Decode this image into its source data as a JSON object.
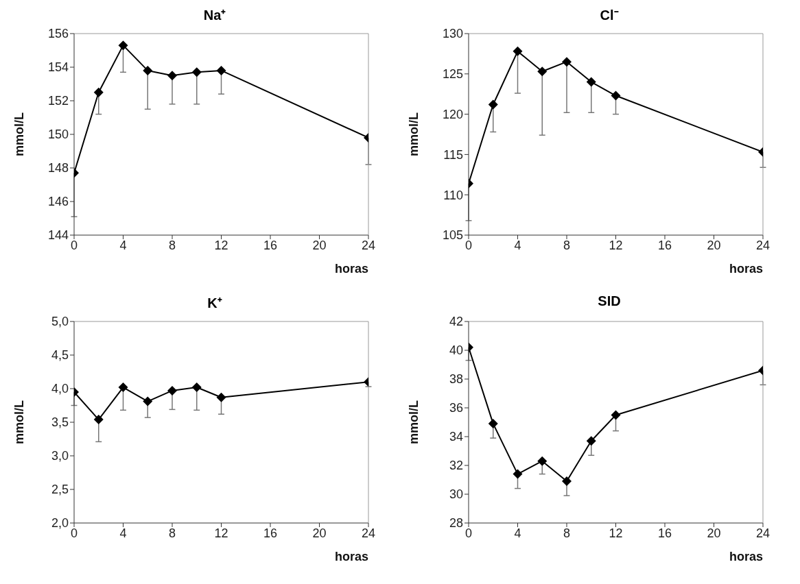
{
  "chart_data": [
    {
      "type": "line",
      "title": "Na⁺",
      "xlabel": "horas",
      "ylabel": "mmol/L",
      "x": [
        0,
        2,
        4,
        6,
        8,
        10,
        12,
        24
      ],
      "xlim": [
        0,
        24
      ],
      "xticks": [
        0,
        4,
        8,
        12,
        16,
        20,
        24
      ],
      "ylim": [
        144,
        156
      ],
      "yticks": [
        144,
        146,
        148,
        150,
        152,
        154,
        156
      ],
      "grid": false,
      "legend": false,
      "marker": "diamond",
      "line_style": "solid",
      "series": [
        {
          "color": "#000000",
          "values": [
            147.7,
            152.5,
            155.3,
            153.8,
            153.5,
            153.7,
            153.8,
            149.8
          ],
          "errors": [
            [
              145.1,
              147.7
            ],
            [
              151.2,
              152.5
            ],
            [
              153.7,
              155.3
            ],
            [
              151.5,
              153.8
            ],
            [
              151.8,
              153.5
            ],
            [
              151.8,
              153.7
            ],
            [
              152.4,
              153.8
            ],
            [
              148.2,
              149.8
            ]
          ]
        }
      ]
    },
    {
      "type": "line",
      "title": "Cl⁻",
      "xlabel": "horas",
      "ylabel": "mmol/L",
      "x": [
        0,
        2,
        4,
        6,
        8,
        10,
        12,
        24
      ],
      "xlim": [
        0,
        24
      ],
      "xticks": [
        0,
        4,
        8,
        12,
        16,
        20,
        24
      ],
      "ylim": [
        105,
        130
      ],
      "yticks": [
        105,
        110,
        115,
        120,
        125,
        130
      ],
      "grid": false,
      "legend": false,
      "marker": "diamond",
      "line_style": "solid",
      "series": [
        {
          "color": "#000000",
          "values": [
            111.4,
            121.2,
            127.8,
            125.3,
            126.5,
            124.0,
            122.3,
            115.3
          ],
          "errors": [
            [
              106.8,
              111.4
            ],
            [
              117.8,
              121.2
            ],
            [
              122.6,
              127.8
            ],
            [
              117.4,
              125.3
            ],
            [
              120.2,
              126.5
            ],
            [
              120.2,
              124.0
            ],
            [
              120.0,
              122.3
            ],
            [
              113.4,
              115.3
            ]
          ]
        }
      ]
    },
    {
      "type": "line",
      "title": "K⁺",
      "xlabel": "horas",
      "ylabel": "mmol/L",
      "x": [
        0,
        2,
        4,
        6,
        8,
        10,
        12,
        24
      ],
      "xlim": [
        0,
        24
      ],
      "xticks": [
        0,
        4,
        8,
        12,
        16,
        20,
        24
      ],
      "ylim": [
        2,
        5
      ],
      "yticks": [
        {
          "value": 2,
          "label": "2,0"
        },
        {
          "value": 2.5,
          "label": "2,5"
        },
        {
          "value": 3,
          "label": "3,0"
        },
        {
          "value": 3.5,
          "label": "3,5"
        },
        {
          "value": 4,
          "label": "4,0"
        },
        {
          "value": 4.5,
          "label": "4,5"
        },
        {
          "value": 5,
          "label": "5,0"
        }
      ],
      "grid": false,
      "legend": false,
      "marker": "diamond",
      "line_style": "solid",
      "series": [
        {
          "color": "#000000",
          "values": [
            3.95,
            3.54,
            4.02,
            3.81,
            3.97,
            4.02,
            3.87,
            4.1
          ],
          "errors": [
            [
              3.75,
              3.95
            ],
            [
              3.21,
              3.54
            ],
            [
              3.68,
              4.02
            ],
            [
              3.57,
              3.81
            ],
            [
              3.69,
              3.97
            ],
            [
              3.68,
              4.02
            ],
            [
              3.62,
              3.87
            ],
            [
              4.03,
              4.1
            ]
          ]
        }
      ]
    },
    {
      "type": "line",
      "title": "SID",
      "xlabel": "horas",
      "ylabel": "mmol/L",
      "x": [
        0,
        2,
        4,
        6,
        8,
        10,
        12,
        24
      ],
      "xlim": [
        0,
        24
      ],
      "xticks": [
        0,
        4,
        8,
        12,
        16,
        20,
        24
      ],
      "ylim": [
        28,
        42
      ],
      "yticks": [
        28,
        30,
        32,
        34,
        36,
        38,
        40,
        42
      ],
      "grid": false,
      "legend": false,
      "marker": "diamond",
      "line_style": "solid",
      "series": [
        {
          "color": "#000000",
          "values": [
            40.2,
            34.9,
            31.4,
            32.3,
            30.9,
            33.7,
            35.5,
            38.6
          ],
          "errors": [
            [
              39.3,
              40.2
            ],
            [
              33.9,
              34.9
            ],
            [
              30.4,
              31.4
            ],
            [
              31.4,
              32.3
            ],
            [
              29.9,
              30.9
            ],
            [
              32.7,
              33.7
            ],
            [
              34.4,
              35.5
            ],
            [
              37.6,
              38.6
            ]
          ]
        }
      ]
    }
  ]
}
